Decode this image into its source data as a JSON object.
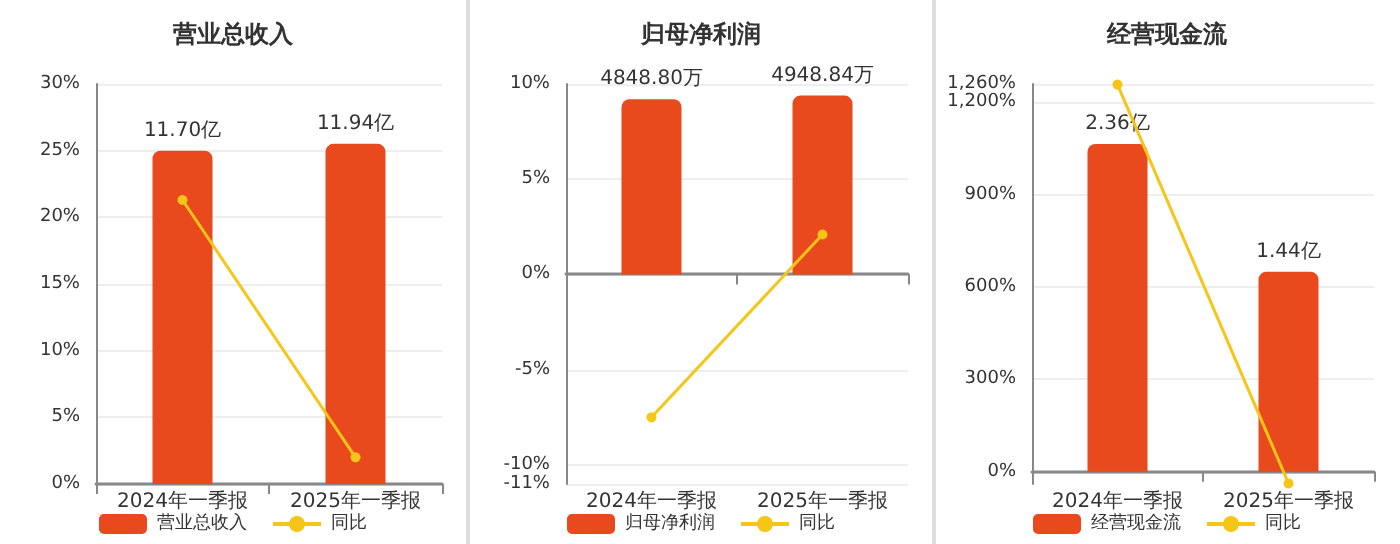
{
  "chart_data": [
    {
      "type": "bar",
      "title": "营业总收入",
      "categories": [
        "2024年一季报",
        "2025年一季报"
      ],
      "series": [
        {
          "name": "营业总收入",
          "axis": "y2",
          "color": "#e8491d",
          "values": [
            11.7,
            11.94
          ],
          "value_labels": [
            "11.70亿",
            "11.94亿"
          ]
        },
        {
          "name": "同比",
          "type": "line",
          "color": "#f5c518",
          "values": [
            21.3,
            2.0
          ]
        }
      ],
      "ylim": [
        0,
        30
      ],
      "yticks": [
        {
          "value": 0,
          "label": "0%"
        },
        {
          "value": 5,
          "label": "5%"
        },
        {
          "value": 10,
          "label": "10%"
        },
        {
          "value": 15,
          "label": "15%"
        },
        {
          "value": 20,
          "label": "20%"
        },
        {
          "value": 25,
          "label": "25%"
        },
        {
          "value": 30,
          "label": "30%"
        }
      ],
      "y2lim": [
        0,
        14.04
      ],
      "grid": "y",
      "legend": "bottom",
      "marker": "circle"
    },
    {
      "type": "bar",
      "title": "归母净利润",
      "categories": [
        "2024年一季报",
        "2025年一季报"
      ],
      "series": [
        {
          "name": "归母净利润",
          "axis": "y2",
          "color": "#e8491d",
          "values": [
            4848.8,
            4948.84
          ],
          "value_labels": [
            "4848.80万",
            "4948.84万"
          ]
        },
        {
          "name": "同比",
          "type": "line",
          "color": "#f5c518",
          "values": [
            -7.5,
            2.1
          ]
        }
      ],
      "ylim": [
        -11,
        10
      ],
      "yticks": [
        {
          "value": -11,
          "label": "-11%"
        },
        {
          "value": -10,
          "label": "-10%"
        },
        {
          "value": -5,
          "label": "-5%"
        },
        {
          "value": 0,
          "label": "0%"
        },
        {
          "value": 5,
          "label": "5%"
        },
        {
          "value": 10,
          "label": "10%"
        }
      ],
      "y2lim": [
        -5797,
        5270
      ],
      "grid": "y",
      "legend": "bottom",
      "marker": "circle"
    },
    {
      "type": "bar",
      "title": "经营现金流",
      "categories": [
        "2024年一季报",
        "2025年一季报"
      ],
      "series": [
        {
          "name": "经营现金流",
          "axis": "y2",
          "color": "#e8491d",
          "values": [
            2.36,
            1.44
          ],
          "value_labels": [
            "2.36亿",
            "1.44亿"
          ]
        },
        {
          "name": "同比",
          "type": "line",
          "color": "#f5c518",
          "values": [
            1258,
            -38
          ]
        }
      ],
      "ylim": [
        -40,
        1260
      ],
      "yticks": [
        {
          "value": 0,
          "label": "0%"
        },
        {
          "value": 300,
          "label": "300%"
        },
        {
          "value": 600,
          "label": "600%"
        },
        {
          "value": 900,
          "label": "900%"
        },
        {
          "value": 1200,
          "label": "1,200%"
        },
        {
          "value": 1260,
          "label": "1,260%"
        }
      ],
      "y2lim": [
        -0.0886,
        2.792
      ],
      "grid": "y",
      "legend": "bottom",
      "marker": "circle"
    }
  ]
}
